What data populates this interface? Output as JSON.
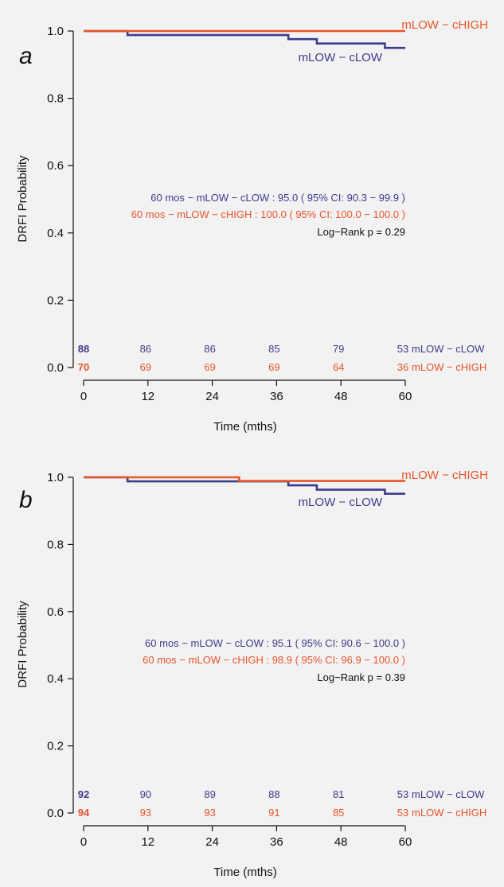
{
  "chart_data": [
    {
      "type": "line",
      "panel": "a",
      "xlabel": "Time (mths)",
      "ylabel": "DRFI Probability",
      "xlim": [
        0,
        60
      ],
      "ylim": [
        0,
        1
      ],
      "x_ticks": [
        "0",
        "12",
        "24",
        "36",
        "48",
        "60"
      ],
      "y_ticks": [
        "0.0",
        "0.2",
        "0.4",
        "0.6",
        "0.8",
        "1.0"
      ],
      "series": [
        {
          "name": "mLOW − cLOW",
          "color": "#3c3c8c",
          "x": [
            0,
            8.2,
            8.2,
            38.2,
            38.2,
            43.5,
            43.5,
            56.2,
            56.2,
            60
          ],
          "y": [
            1.0,
            1.0,
            0.988,
            0.988,
            0.976,
            0.976,
            0.963,
            0.963,
            0.95,
            0.95
          ]
        },
        {
          "name": "mLOW − cHIGH",
          "color": "#e8552a",
          "x": [
            0,
            60
          ],
          "y": [
            1.0,
            1.0
          ]
        }
      ],
      "annotations": [
        "60 mos  − mLOW − cLOW : 95.0 ( 95% CI: 90.3 − 99.9 )",
        "60 mos  − mLOW − cHIGH : 100.0 ( 95% CI: 100.0 − 100.0 )",
        "Log−Rank p = 0.29"
      ],
      "risk_table": [
        {
          "group": "mLOW − cLOW",
          "counts": [
            "88",
            "86",
            "86",
            "85",
            "79",
            "53"
          ]
        },
        {
          "group": "mLOW − cHIGH",
          "counts": [
            "70",
            "69",
            "69",
            "69",
            "64",
            "36"
          ]
        }
      ]
    },
    {
      "type": "line",
      "panel": "b",
      "xlabel": "Time (mths)",
      "ylabel": "DRFI Probability",
      "xlim": [
        0,
        60
      ],
      "ylim": [
        0,
        1
      ],
      "x_ticks": [
        "0",
        "12",
        "24",
        "36",
        "48",
        "60"
      ],
      "y_ticks": [
        "0.0",
        "0.2",
        "0.4",
        "0.6",
        "0.8",
        "1.0"
      ],
      "series": [
        {
          "name": "mLOW − cLOW",
          "color": "#3c3c8c",
          "x": [
            0,
            8.2,
            8.2,
            38.2,
            38.2,
            43.5,
            43.5,
            56.2,
            56.2,
            60
          ],
          "y": [
            1.0,
            1.0,
            0.988,
            0.988,
            0.976,
            0.976,
            0.963,
            0.963,
            0.951,
            0.951
          ]
        },
        {
          "name": "mLOW − cHIGH",
          "color": "#e8552a",
          "x": [
            0,
            29,
            29,
            60
          ],
          "y": [
            1.0,
            1.0,
            0.989,
            0.989
          ]
        }
      ],
      "annotations": [
        "60 mos  − mLOW − cLOW : 95.1 ( 95% CI: 90.6 − 100.0 )",
        "60 mos  − mLOW − cHIGH : 98.9 ( 95% CI: 96.9 − 100.0 )",
        "Log−Rank p = 0.39"
      ],
      "risk_table": [
        {
          "group": "mLOW − cLOW",
          "counts": [
            "92",
            "90",
            "89",
            "88",
            "81",
            "53"
          ]
        },
        {
          "group": "mLOW − cHIGH",
          "counts": [
            "94",
            "93",
            "93",
            "91",
            "85",
            "53"
          ]
        }
      ]
    }
  ]
}
